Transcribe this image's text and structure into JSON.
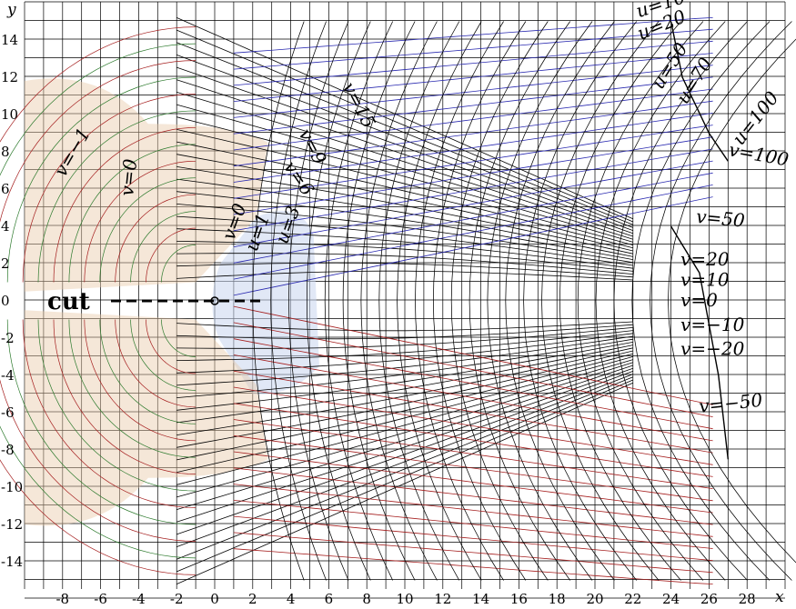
{
  "chart_data": {
    "type": "diagram",
    "xlabel": "x",
    "ylabel": "y",
    "xlim": [
      -10,
      30
    ],
    "ylim": [
      -15,
      15
    ],
    "x_ticks": [
      "-8",
      "-6",
      "-4",
      "-2",
      "0",
      "2",
      "4",
      "6",
      "8",
      "10",
      "12",
      "14",
      "16",
      "18",
      "20",
      "22",
      "24",
      "26",
      "28"
    ],
    "y_ticks": [
      "14",
      "12",
      "10",
      "8",
      "6",
      "4",
      "2",
      "0",
      "-2",
      "-4",
      "-6",
      "-8",
      "-10",
      "-12",
      "-14"
    ],
    "cut_label": "cut",
    "curve_labels": [
      {
        "text": "u=10",
        "x": 22.3,
        "y": 15.2,
        "rot": -18
      },
      {
        "text": "u=20",
        "x": 22.4,
        "y": 14.0,
        "rot": -22
      },
      {
        "text": "u=50",
        "x": 23.5,
        "y": 11.3,
        "rot": -58
      },
      {
        "text": "u=70",
        "x": 24.8,
        "y": 10.5,
        "rot": -58
      },
      {
        "text": "u=100",
        "x": 27.7,
        "y": 8.3,
        "rot": -52
      },
      {
        "text": "v=100",
        "x": 27.0,
        "y": 7.8,
        "rot": 10
      },
      {
        "text": "v=50",
        "x": 25.3,
        "y": 4.2,
        "rot": 5
      },
      {
        "text": "v=20",
        "x": 24.5,
        "y": 1.9,
        "rot": 0
      },
      {
        "text": "v=10",
        "x": 24.5,
        "y": 0.8,
        "rot": 0
      },
      {
        "text": "v=0",
        "x": 24.5,
        "y": -0.3,
        "rot": 0
      },
      {
        "text": "v=−10",
        "x": 24.5,
        "y": -1.6,
        "rot": 0
      },
      {
        "text": "v=−20",
        "x": 24.5,
        "y": -2.9,
        "rot": 0
      },
      {
        "text": "v=−50",
        "x": 25.5,
        "y": -6.0,
        "rot": -6
      },
      {
        "text": "v=15",
        "x": 6.7,
        "y": 11.5,
        "rot": 62
      },
      {
        "text": "v=9",
        "x": 4.4,
        "y": 9.0,
        "rot": 62
      },
      {
        "text": "v=6",
        "x": 3.6,
        "y": 7.2,
        "rot": 55
      },
      {
        "text": "u=3",
        "x": 3.8,
        "y": 3.0,
        "rot": -70
      },
      {
        "text": "u=1",
        "x": 2.2,
        "y": 2.6,
        "rot": -70
      },
      {
        "text": "v=0",
        "x": 1.0,
        "y": 3.2,
        "rot": -70
      },
      {
        "text": "v=0",
        "x": -4.3,
        "y": 5.6,
        "rot": -84
      },
      {
        "text": "v=−1",
        "x": -7.9,
        "y": 6.6,
        "rot": -60
      }
    ]
  }
}
